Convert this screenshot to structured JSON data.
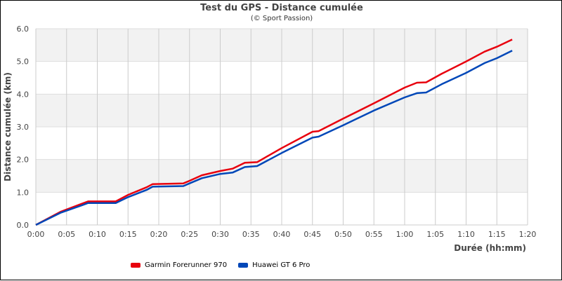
{
  "chart_data": {
    "type": "line",
    "title": "Test du GPS - Distance cumulée",
    "subtitle": "(© Sport Passion)",
    "xlabel": "Durée (hh:mm)",
    "ylabel": "Distance cumulée (km)",
    "xlim_minutes": [
      0,
      80
    ],
    "ylim": [
      0,
      6
    ],
    "x_ticks": [
      "0:00",
      "0:05",
      "0:10",
      "0:15",
      "0:20",
      "0:25",
      "0:30",
      "0:35",
      "0:40",
      "0:45",
      "0:50",
      "0:55",
      "1:00",
      "1:05",
      "1:10",
      "1:15",
      "1:20"
    ],
    "y_ticks": [
      "0.0",
      "1.0",
      "2.0",
      "3.0",
      "4.0",
      "5.0",
      "6.0"
    ],
    "grid": true,
    "legend_position": "bottom",
    "series": [
      {
        "name": "Garmin Forerunner 970",
        "color": "#e8000e",
        "x_minutes": [
          0,
          4,
          7.5,
          8.5,
          13,
          15,
          18,
          19,
          24,
          25,
          27,
          30,
          32,
          34,
          36,
          40,
          45,
          46,
          50,
          55,
          60,
          62,
          63.5,
          66,
          70,
          73,
          75,
          77.5
        ],
        "values": [
          0,
          0.4,
          0.65,
          0.72,
          0.72,
          0.92,
          1.15,
          1.25,
          1.27,
          1.35,
          1.52,
          1.65,
          1.72,
          1.9,
          1.92,
          2.35,
          2.85,
          2.87,
          3.25,
          3.72,
          4.2,
          4.35,
          4.36,
          4.62,
          5.0,
          5.3,
          5.45,
          5.67
        ]
      },
      {
        "name": "Huawei GT 6 Pro",
        "color": "#0047b8",
        "x_minutes": [
          0,
          4,
          7.5,
          8.5,
          13,
          15,
          18,
          19,
          24,
          25,
          27,
          30,
          32,
          34,
          36,
          40,
          45,
          46,
          50,
          55,
          60,
          62,
          63.5,
          66,
          70,
          73,
          75,
          77.5
        ],
        "values": [
          0,
          0.37,
          0.6,
          0.67,
          0.67,
          0.85,
          1.07,
          1.17,
          1.19,
          1.27,
          1.43,
          1.56,
          1.6,
          1.77,
          1.8,
          2.2,
          2.67,
          2.7,
          3.05,
          3.5,
          3.9,
          4.03,
          4.05,
          4.3,
          4.65,
          4.95,
          5.1,
          5.33
        ]
      }
    ]
  },
  "legend": {
    "items": [
      {
        "label": "Garmin Forerunner 970",
        "color": "#e8000e"
      },
      {
        "label": "Huawei GT 6 Pro",
        "color": "#0047b8"
      }
    ]
  }
}
